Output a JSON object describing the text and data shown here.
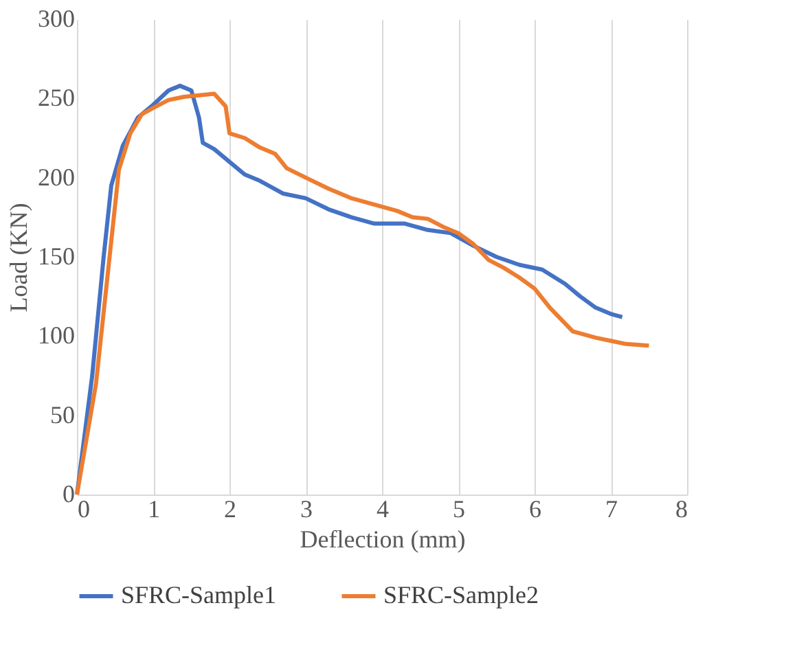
{
  "chart_data": {
    "type": "line",
    "xlabel": "Deflection (mm)",
    "ylabel": "Load (KN)",
    "xlim": [
      0,
      8
    ],
    "xticks": [
      0,
      1,
      2,
      3,
      4,
      5,
      6,
      7,
      8
    ],
    "ylim": [
      0,
      300
    ],
    "yticks": [
      0,
      50,
      100,
      150,
      200,
      250,
      300
    ],
    "grid": "x",
    "legend": "bottom",
    "marker": "none",
    "line_style": "solid",
    "series": [
      {
        "name": "SFRC-Sample1",
        "color": "#4472c4",
        "x": [
          0,
          0.2,
          0.35,
          0.45,
          0.6,
          0.8,
          1.0,
          1.2,
          1.35,
          1.5,
          1.6,
          1.65,
          1.8,
          2.0,
          2.2,
          2.4,
          2.7,
          3.0,
          3.3,
          3.6,
          3.9,
          4.3,
          4.6,
          4.9,
          5.2,
          5.5,
          5.8,
          6.1,
          6.4,
          6.6,
          6.8,
          7.0,
          7.15
        ],
        "values": [
          0,
          75,
          150,
          195,
          220,
          238,
          246,
          255,
          258,
          255,
          238,
          222,
          218,
          210,
          202,
          198,
          190,
          187,
          180,
          175,
          171,
          171,
          167,
          165,
          157,
          150,
          145,
          142,
          133,
          125,
          118,
          114,
          112
        ]
      },
      {
        "name": "SFRC-Sample2",
        "color": "#ed7d31",
        "x": [
          0,
          0.25,
          0.45,
          0.55,
          0.7,
          0.85,
          1.0,
          1.2,
          1.4,
          1.6,
          1.8,
          1.95,
          2.0,
          2.2,
          2.4,
          2.6,
          2.75,
          3.0,
          3.3,
          3.6,
          3.9,
          4.2,
          4.4,
          4.6,
          4.8,
          5.0,
          5.2,
          5.4,
          5.6,
          5.8,
          6.0,
          6.2,
          6.5,
          6.8,
          7.0,
          7.2,
          7.5
        ],
        "values": [
          0,
          70,
          160,
          205,
          228,
          240,
          244,
          249,
          251,
          252,
          253,
          245,
          228,
          225,
          219,
          215,
          206,
          200,
          193,
          187,
          183,
          179,
          175,
          174,
          169,
          165,
          158,
          148,
          143,
          137,
          130,
          118,
          103,
          99,
          97,
          95,
          94
        ]
      }
    ]
  }
}
